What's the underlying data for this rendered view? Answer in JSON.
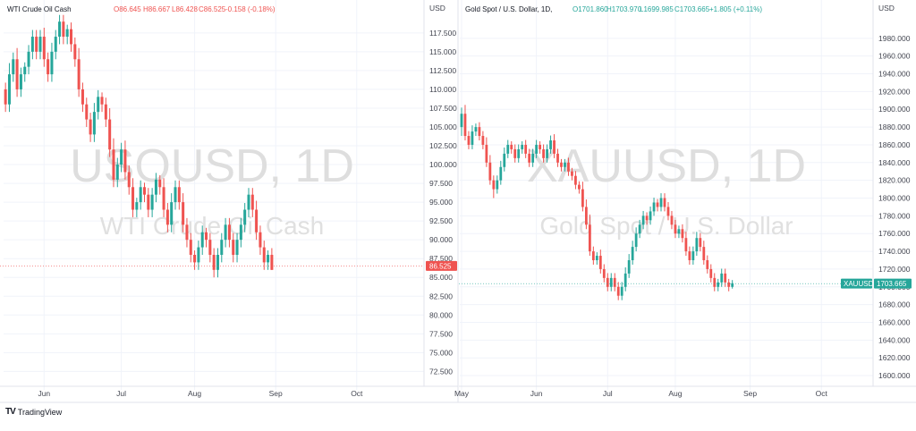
{
  "branding": {
    "logo_glyph": "TV",
    "label": "TradingView"
  },
  "colors": {
    "up": "#26a69a",
    "down": "#ef5350",
    "grid": "#f0f3fa",
    "axis_text": "#434651"
  },
  "chart_data": [
    {
      "type": "candlestick",
      "symbol_line": "WTI Crude Oil Cash",
      "watermark_symbol": "USOUSD, 1D",
      "watermark_name": "WTI Crude Oil Cash",
      "axis_unit": "USD",
      "ohlc": {
        "O": "O86.645",
        "H": "H86.667",
        "L": "L86.428",
        "C": "C86.525",
        "change": "-0.158 (-0.18%)",
        "direction": "down"
      },
      "last_price": 86.525,
      "last_price_label": "86.525",
      "last_price_symbol": "",
      "ylim": [
        71.0,
        119.5
      ],
      "yticks": [
        72.5,
        75.0,
        77.5,
        80.0,
        82.5,
        85.0,
        87.5,
        90.0,
        92.5,
        95.0,
        97.5,
        100.0,
        102.5,
        105.0,
        107.5,
        110.0,
        112.5,
        115.0,
        117.5
      ],
      "ytick_labels": [
        "72.500",
        "75.000",
        "77.500",
        "80.000",
        "82.500",
        "85.000",
        "87.500",
        "90.000",
        "92.500",
        "95.000",
        "97.500",
        "100.000",
        "102.500",
        "105.000",
        "107.500",
        "110.000",
        "112.500",
        "115.000",
        "117.500"
      ],
      "xlabels": [
        {
          "label": "Jun",
          "index": 10
        },
        {
          "label": "Jul",
          "index": 30
        },
        {
          "label": "Aug",
          "index": 49
        },
        {
          "label": "Sep",
          "index": 70
        },
        {
          "label": "Oct",
          "index": 91
        }
      ],
      "total_slots": 108,
      "candles": [
        [
          110,
          108,
          107
        ],
        [
          108,
          112,
          107
        ],
        [
          112,
          114,
          111
        ],
        [
          114,
          110,
          109
        ],
        [
          110,
          112,
          109
        ],
        [
          112,
          113,
          111
        ],
        [
          113,
          115,
          112
        ],
        [
          115,
          117,
          114
        ],
        [
          117,
          115,
          114
        ],
        [
          115,
          117,
          114
        ],
        [
          117,
          114,
          113
        ],
        [
          114,
          112,
          111
        ],
        [
          112,
          115,
          111
        ],
        [
          115,
          117,
          114
        ],
        [
          117,
          119,
          116
        ],
        [
          119,
          117,
          116
        ],
        [
          117,
          118,
          116
        ],
        [
          118,
          116,
          115
        ],
        [
          116,
          114,
          113
        ],
        [
          114,
          110,
          109
        ],
        [
          110,
          108,
          107
        ],
        [
          108,
          106,
          105
        ],
        [
          106,
          104,
          103
        ],
        [
          104,
          107,
          103
        ],
        [
          107,
          109,
          106
        ],
        [
          109,
          108,
          107
        ],
        [
          108,
          106,
          105
        ],
        [
          106,
          102,
          101
        ],
        [
          102,
          98,
          97
        ],
        [
          98,
          100,
          97
        ],
        [
          100,
          102,
          99
        ],
        [
          102,
          99,
          98
        ],
        [
          99,
          97,
          96
        ],
        [
          97,
          94,
          93
        ],
        [
          94,
          95,
          93
        ],
        [
          95,
          97,
          94
        ],
        [
          97,
          96,
          95
        ],
        [
          96,
          94,
          93
        ],
        [
          94,
          96,
          93
        ],
        [
          96,
          98,
          95
        ],
        [
          98,
          97,
          96
        ],
        [
          97,
          94,
          93
        ],
        [
          94,
          92,
          91
        ],
        [
          92,
          95,
          91
        ],
        [
          95,
          97,
          94
        ],
        [
          97,
          95,
          94
        ],
        [
          95,
          92,
          91
        ],
        [
          92,
          90,
          89
        ],
        [
          90,
          88,
          87
        ],
        [
          88,
          87,
          86
        ],
        [
          87,
          89,
          86
        ],
        [
          89,
          91,
          88
        ],
        [
          91,
          90,
          89
        ],
        [
          90,
          88,
          87
        ],
        [
          88,
          86,
          85
        ],
        [
          86,
          88,
          85
        ],
        [
          88,
          90,
          87
        ],
        [
          90,
          92,
          89
        ],
        [
          92,
          90,
          89
        ],
        [
          90,
          88,
          87
        ],
        [
          88,
          90,
          87
        ],
        [
          90,
          92,
          89
        ],
        [
          92,
          94,
          91
        ],
        [
          94,
          96,
          93
        ],
        [
          96,
          94,
          93
        ],
        [
          94,
          91,
          90
        ],
        [
          91,
          89,
          88
        ],
        [
          89,
          87,
          86
        ],
        [
          87,
          88,
          86
        ],
        [
          88,
          86,
          86
        ]
      ]
    },
    {
      "type": "candlestick",
      "symbol_line": "Gold Spot / U.S. Dollar, 1D,",
      "watermark_symbol": "XAUUSD, 1D",
      "watermark_name": "Gold Spot / U.S. Dollar",
      "axis_unit": "USD",
      "ohlc": {
        "O": "O1701.860",
        "H": "H1703.970",
        "L": "L1699.985",
        "C": "C1703.665",
        "change": "+1.805 (+0.11%)",
        "direction": "up"
      },
      "last_price": 1703.665,
      "last_price_label": "1703.665",
      "last_price_symbol": "XAUUSD",
      "ylim": [
        1592,
        2003
      ],
      "yticks": [
        1600,
        1620,
        1640,
        1660,
        1680,
        1700,
        1720,
        1740,
        1760,
        1780,
        1800,
        1820,
        1840,
        1860,
        1880,
        1900,
        1920,
        1940,
        1960,
        1980
      ],
      "ytick_labels": [
        "1600.000",
        "1620.000",
        "1640.000",
        "1660.000",
        "1680.000",
        "1700.000",
        "1720.000",
        "1740.000",
        "1760.000",
        "1780.000",
        "1800.000",
        "1820.000",
        "1840.000",
        "1860.000",
        "1880.000",
        "1900.000",
        "1920.000",
        "1940.000",
        "1960.000",
        "1980.000"
      ],
      "xlabels": [
        {
          "label": "May",
          "index": 0
        },
        {
          "label": "Jun",
          "index": 21
        },
        {
          "label": "Jul",
          "index": 41
        },
        {
          "label": "Aug",
          "index": 60
        },
        {
          "label": "Sep",
          "index": 81
        },
        {
          "label": "Oct",
          "index": 101
        }
      ],
      "total_slots": 115,
      "candles": [
        [
          1880,
          1895,
          1870
        ],
        [
          1895,
          1870,
          1865
        ],
        [
          1870,
          1860,
          1855
        ],
        [
          1860,
          1875,
          1855
        ],
        [
          1875,
          1880,
          1870
        ],
        [
          1880,
          1870,
          1865
        ],
        [
          1870,
          1860,
          1855
        ],
        [
          1860,
          1840,
          1835
        ],
        [
          1840,
          1820,
          1815
        ],
        [
          1820,
          1810,
          1800
        ],
        [
          1810,
          1820,
          1805
        ],
        [
          1820,
          1835,
          1815
        ],
        [
          1835,
          1850,
          1830
        ],
        [
          1850,
          1860,
          1845
        ],
        [
          1860,
          1855,
          1850
        ],
        [
          1855,
          1845,
          1840
        ],
        [
          1845,
          1855,
          1840
        ],
        [
          1855,
          1860,
          1850
        ],
        [
          1860,
          1850,
          1845
        ],
        [
          1850,
          1840,
          1835
        ],
        [
          1840,
          1850,
          1835
        ],
        [
          1850,
          1860,
          1845
        ],
        [
          1860,
          1855,
          1850
        ],
        [
          1855,
          1845,
          1840
        ],
        [
          1845,
          1855,
          1840
        ],
        [
          1855,
          1865,
          1850
        ],
        [
          1865,
          1850,
          1845
        ],
        [
          1850,
          1840,
          1835
        ],
        [
          1840,
          1835,
          1830
        ],
        [
          1835,
          1840,
          1830
        ],
        [
          1840,
          1830,
          1825
        ],
        [
          1830,
          1825,
          1820
        ],
        [
          1825,
          1815,
          1810
        ],
        [
          1815,
          1810,
          1805
        ],
        [
          1810,
          1790,
          1785
        ],
        [
          1790,
          1770,
          1765
        ],
        [
          1770,
          1740,
          1735
        ],
        [
          1740,
          1730,
          1725
        ],
        [
          1730,
          1735,
          1725
        ],
        [
          1735,
          1720,
          1715
        ],
        [
          1720,
          1710,
          1705
        ],
        [
          1710,
          1700,
          1695
        ],
        [
          1700,
          1710,
          1695
        ],
        [
          1710,
          1700,
          1695
        ],
        [
          1700,
          1690,
          1685
        ],
        [
          1690,
          1700,
          1685
        ],
        [
          1700,
          1715,
          1695
        ],
        [
          1715,
          1730,
          1710
        ],
        [
          1730,
          1745,
          1725
        ],
        [
          1745,
          1760,
          1740
        ],
        [
          1760,
          1770,
          1755
        ],
        [
          1770,
          1780,
          1765
        ],
        [
          1780,
          1775,
          1770
        ],
        [
          1775,
          1785,
          1770
        ],
        [
          1785,
          1795,
          1780
        ],
        [
          1795,
          1790,
          1785
        ],
        [
          1790,
          1800,
          1785
        ],
        [
          1800,
          1790,
          1785
        ],
        [
          1790,
          1780,
          1775
        ],
        [
          1780,
          1770,
          1765
        ],
        [
          1770,
          1760,
          1755
        ],
        [
          1760,
          1765,
          1755
        ],
        [
          1765,
          1755,
          1750
        ],
        [
          1755,
          1740,
          1735
        ],
        [
          1740,
          1730,
          1725
        ],
        [
          1730,
          1740,
          1725
        ],
        [
          1740,
          1755,
          1735
        ],
        [
          1755,
          1745,
          1740
        ],
        [
          1745,
          1730,
          1725
        ],
        [
          1730,
          1720,
          1715
        ],
        [
          1720,
          1710,
          1705
        ],
        [
          1710,
          1700,
          1695
        ],
        [
          1700,
          1705,
          1695
        ],
        [
          1705,
          1715,
          1700
        ],
        [
          1715,
          1705,
          1700
        ],
        [
          1705,
          1700,
          1695
        ],
        [
          1700,
          1704,
          1698
        ]
      ]
    }
  ]
}
